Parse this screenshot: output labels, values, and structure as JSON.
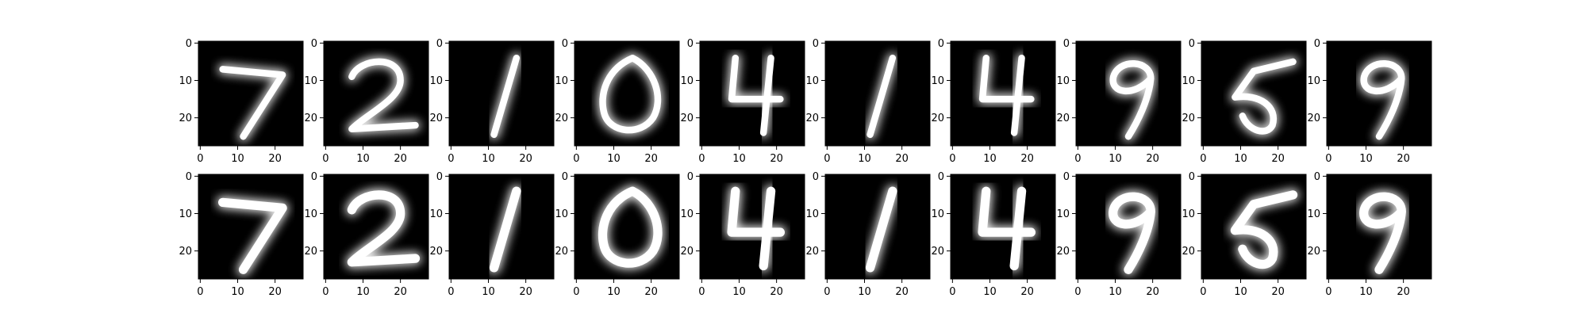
{
  "chart_data": {
    "type": "image-grid",
    "rows": [
      {
        "row": 1,
        "digits": [
          "7",
          "2",
          "1",
          "0",
          "4",
          "1",
          "4",
          "9",
          "5",
          "9"
        ]
      },
      {
        "row": 2,
        "digits": [
          "7",
          "2",
          "1",
          "0",
          "4",
          "1",
          "4",
          "9",
          "5",
          "9"
        ]
      }
    ],
    "image_size": [
      28,
      28
    ],
    "colormap": "gray",
    "xlim": [
      -0.5,
      27.5
    ],
    "ylim": [
      27.5,
      -0.5
    ],
    "xticks": [
      0,
      10,
      20
    ],
    "yticks": [
      0,
      10,
      20
    ],
    "xtick_labels": [
      "0",
      "10",
      "20"
    ],
    "ytick_labels": [
      "0",
      "10",
      "20"
    ],
    "colors": {
      "background": "#000000",
      "foreground": "#ffffff",
      "axes": "#000000"
    }
  }
}
